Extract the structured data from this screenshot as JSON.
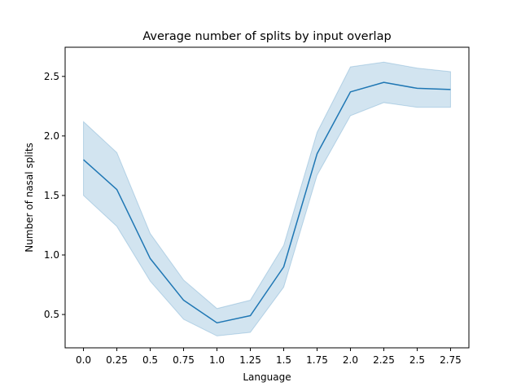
{
  "chart_data": {
    "type": "line",
    "title": "Average number of splits by input overlap",
    "xlabel": "Language",
    "ylabel": "Number of nasal splits",
    "xlim": [
      -0.1375,
      2.8875
    ],
    "ylim": [
      0.22,
      2.745
    ],
    "x_ticks": [
      "0.0",
      "0.25",
      "0.5",
      "0.75",
      "1.0",
      "1.25",
      "1.5",
      "1.75",
      "2.0",
      "2.25",
      "2.5",
      "2.75"
    ],
    "y_ticks": [
      "0.5",
      "1.0",
      "1.5",
      "2.0",
      "2.5"
    ],
    "grid": false,
    "colors": {
      "line": "#1f77b4",
      "band": "#1f77b4",
      "band_opacity": 0.2,
      "axes": "#000000"
    },
    "series": [
      {
        "x": [
          0.0,
          0.25,
          0.5,
          0.75,
          1.0,
          1.25,
          1.5,
          1.75,
          2.0,
          2.25,
          2.5,
          2.75
        ],
        "values": [
          1.8,
          1.55,
          0.97,
          0.62,
          0.43,
          0.49,
          0.9,
          1.85,
          2.37,
          2.45,
          2.4,
          2.39
        ],
        "ci_lower": [
          1.5,
          1.24,
          0.78,
          0.46,
          0.32,
          0.35,
          0.73,
          1.67,
          2.17,
          2.28,
          2.24,
          2.24
        ],
        "ci_upper": [
          2.12,
          1.86,
          1.18,
          0.79,
          0.55,
          0.62,
          1.08,
          2.03,
          2.58,
          2.62,
          2.57,
          2.54
        ]
      }
    ]
  }
}
